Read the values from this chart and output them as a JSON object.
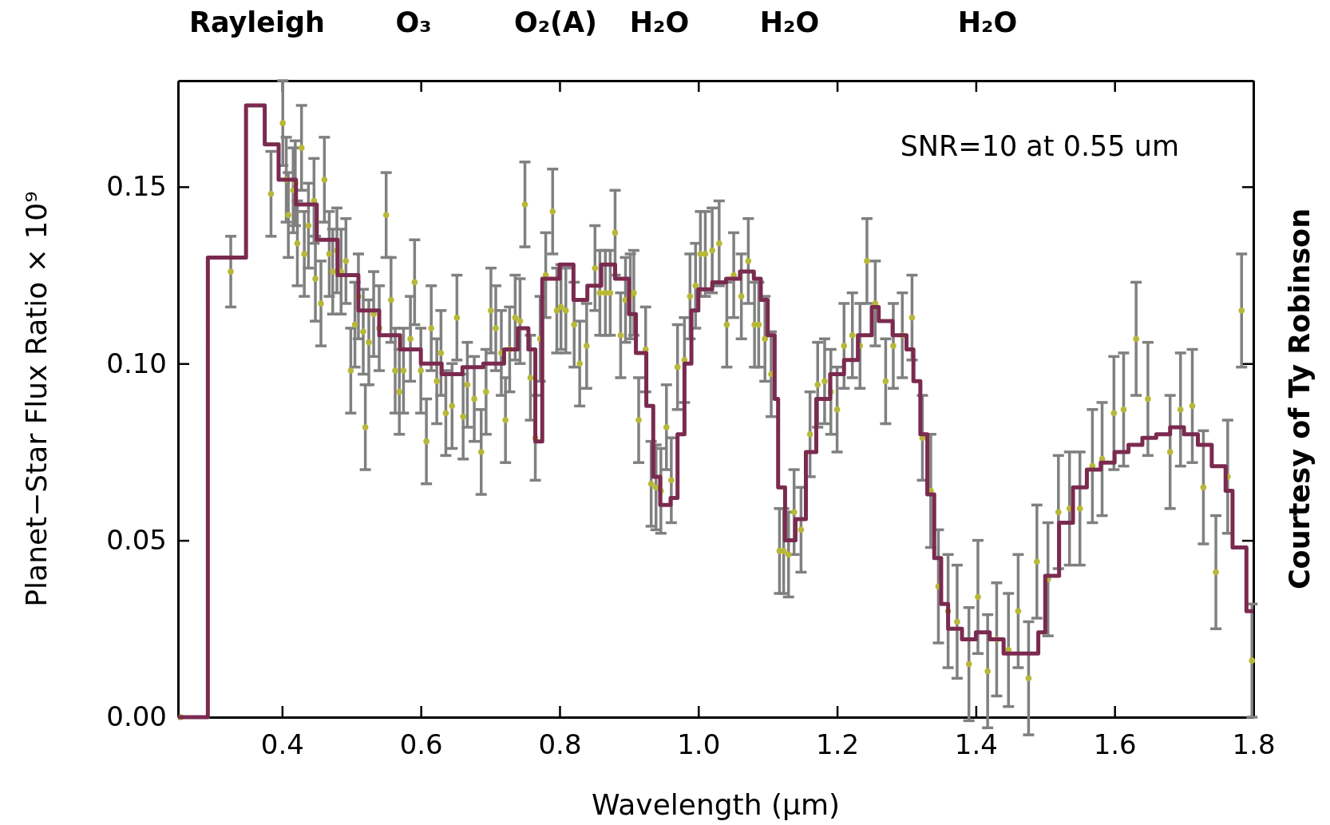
{
  "chart_data": {
    "type": "scatter",
    "xlabel": "Wavelength (μm)",
    "ylabel": "Planet−Star Flux Ratio × 10⁹",
    "xlim": [
      0.25,
      1.8
    ],
    "ylim": [
      0,
      0.18
    ],
    "xticks": [
      {
        "value": 0.4,
        "label": "0.4"
      },
      {
        "value": 0.6,
        "label": "0.6"
      },
      {
        "value": 0.8,
        "label": "0.8"
      },
      {
        "value": 1.0,
        "label": "1.0"
      },
      {
        "value": 1.2,
        "label": "1.2"
      },
      {
        "value": 1.4,
        "label": "1.4"
      },
      {
        "value": 1.6,
        "label": "1.6"
      },
      {
        "value": 1.8,
        "label": "1.8"
      }
    ],
    "yticks": [
      {
        "value": 0,
        "label": "0.00"
      },
      {
        "value": 0.05,
        "label": "0.05"
      },
      {
        "value": 0.1,
        "label": "0.10"
      },
      {
        "value": 0.15,
        "label": "0.15"
      }
    ],
    "grid": false,
    "annotations": [
      "Rayleigh",
      "O₃",
      "O₂(A)",
      "H₂O",
      "H₂O",
      "H₂O",
      "SNR=10 at 0.55 um",
      "Courtesy of Ty Robinson"
    ],
    "series": [
      {
        "type": "step",
        "color": "#7b2a4f",
        "x": [
          0.25,
          0.293,
          0.348,
          0.375,
          0.395,
          0.42,
          0.45,
          0.48,
          0.51,
          0.54,
          0.57,
          0.6,
          0.63,
          0.66,
          0.69,
          0.72,
          0.74,
          0.755,
          0.765,
          0.775,
          0.8,
          0.82,
          0.84,
          0.86,
          0.88,
          0.9,
          0.91,
          0.925,
          0.935,
          0.945,
          0.96,
          0.97,
          0.98,
          0.99,
          1.0,
          1.02,
          1.04,
          1.06,
          1.08,
          1.09,
          1.1,
          1.11,
          1.115,
          1.125,
          1.14,
          1.155,
          1.17,
          1.19,
          1.21,
          1.23,
          1.25,
          1.26,
          1.28,
          1.3,
          1.31,
          1.32,
          1.33,
          1.34,
          1.35,
          1.36,
          1.38,
          1.4,
          1.42,
          1.44,
          1.47,
          1.49,
          1.5,
          1.52,
          1.54,
          1.56,
          1.58,
          1.6,
          1.62,
          1.64,
          1.66,
          1.68,
          1.7,
          1.72,
          1.74,
          1.76,
          1.77,
          1.79,
          1.8
        ],
        "values": [
          0,
          0.13,
          0.173,
          0.162,
          0.152,
          0.145,
          0.135,
          0.125,
          0.115,
          0.108,
          0.104,
          0.1,
          0.097,
          0.099,
          0.1,
          0.104,
          0.11,
          0.104,
          0.078,
          0.124,
          0.128,
          0.118,
          0.122,
          0.128,
          0.124,
          0.114,
          0.103,
          0.088,
          0.068,
          0.06,
          0.062,
          0.08,
          0.1,
          0.115,
          0.121,
          0.123,
          0.124,
          0.126,
          0.124,
          0.118,
          0.108,
          0.09,
          0.065,
          0.05,
          0.056,
          0.075,
          0.09,
          0.097,
          0.101,
          0.108,
          0.116,
          0.112,
          0.108,
          0.104,
          0.095,
          0.08,
          0.063,
          0.045,
          0.032,
          0.025,
          0.022,
          0.024,
          0.022,
          0.018,
          0.018,
          0.024,
          0.04,
          0.055,
          0.065,
          0.07,
          0.072,
          0.075,
          0.077,
          0.079,
          0.08,
          0.082,
          0.08,
          0.077,
          0.071,
          0.064,
          0.048,
          0.03,
          0.03
        ]
      },
      {
        "color": "#b8b838",
        "marker": "circle",
        "x": [
          0.254,
          0.326,
          0.384,
          0.401,
          0.406,
          0.409,
          0.416,
          0.419,
          0.422,
          0.428,
          0.432,
          0.438,
          0.446,
          0.448,
          0.456,
          0.461,
          0.468,
          0.473,
          0.479,
          0.485,
          0.492,
          0.499,
          0.505,
          0.51,
          0.517,
          0.52,
          0.525,
          0.532,
          0.54,
          0.55,
          0.557,
          0.563,
          0.569,
          0.575,
          0.585,
          0.591,
          0.6,
          0.608,
          0.615,
          0.623,
          0.629,
          0.636,
          0.645,
          0.652,
          0.661,
          0.667,
          0.677,
          0.687,
          0.694,
          0.701,
          0.708,
          0.716,
          0.722,
          0.728,
          0.736,
          0.743,
          0.75,
          0.758,
          0.765,
          0.772,
          0.78,
          0.79,
          0.796,
          0.802,
          0.809,
          0.821,
          0.829,
          0.839,
          0.851,
          0.858,
          0.866,
          0.873,
          0.88,
          0.888,
          0.895,
          0.902,
          0.907,
          0.914,
          0.924,
          0.932,
          0.939,
          0.946,
          0.954,
          0.961,
          0.97,
          0.98,
          0.988,
          0.996,
          1.003,
          1.01,
          1.02,
          1.03,
          1.041,
          1.051,
          1.062,
          1.072,
          1.081,
          1.087,
          1.096,
          1.105,
          1.117,
          1.123,
          1.13,
          1.138,
          1.148,
          1.161,
          1.172,
          1.182,
          1.191,
          1.2,
          1.21,
          1.222,
          1.233,
          1.243,
          1.255,
          1.27,
          1.281,
          1.294,
          1.308,
          1.323,
          1.335,
          1.346,
          1.36,
          1.373,
          1.39,
          1.403,
          1.417,
          1.43,
          1.447,
          1.461,
          1.476,
          1.488,
          1.504,
          1.519,
          1.535,
          1.55,
          1.568,
          1.582,
          1.599,
          1.613,
          1.631,
          1.648,
          1.68,
          1.695,
          1.712,
          1.728,
          1.746,
          1.763,
          1.783,
          1.798
        ],
        "values": [
          0,
          0.126,
          0.148,
          0.168,
          0.152,
          0.142,
          0.149,
          0.151,
          0.134,
          0.161,
          0.131,
          0.139,
          0.146,
          0.124,
          0.117,
          0.152,
          0.131,
          0.126,
          0.132,
          0.126,
          0.129,
          0.098,
          0.111,
          0.119,
          0.109,
          0.082,
          0.106,
          0.114,
          0.11,
          0.142,
          0.118,
          0.098,
          0.092,
          0.098,
          0.107,
          0.123,
          0.098,
          0.078,
          0.11,
          0.095,
          0.103,
          0.086,
          0.088,
          0.113,
          0.085,
          0.094,
          0.09,
          0.075,
          0.092,
          0.115,
          0.11,
          0.103,
          0.084,
          0.104,
          0.113,
          0.112,
          0.145,
          0.096,
          0.079,
          0.107,
          0.125,
          0.143,
          0.115,
          0.116,
          0.115,
          0.111,
          0.1,
          0.105,
          0.127,
          0.12,
          0.12,
          0.12,
          0.137,
          0.108,
          0.118,
          0.119,
          0.12,
          0.084,
          0.104,
          0.066,
          0.065,
          0.064,
          0.082,
          0.067,
          0.099,
          0.101,
          0.119,
          0.122,
          0.131,
          0.131,
          0.132,
          0.134,
          0.111,
          0.125,
          0.119,
          0.129,
          0.111,
          0.111,
          0.107,
          0.097,
          0.047,
          0.047,
          0.046,
          0.058,
          0.053,
          0.08,
          0.094,
          0.095,
          0.092,
          0.087,
          0.105,
          0.108,
          0.105,
          0.129,
          0.117,
          0.095,
          0.105,
          0.108,
          0.113,
          0.079,
          0.064,
          0.037,
          0.03,
          0.027,
          0.015,
          0.034,
          0.013,
          0.022,
          0.019,
          0.03,
          0.011,
          0.044,
          0.039,
          0.058,
          0.059,
          0.059,
          0.071,
          0.073,
          0.086,
          0.087,
          0.107,
          0.09,
          0.075,
          0.087,
          0.088,
          0.065,
          0.041,
          0.068,
          0.115,
          0.016
        ],
        "errors": [
          null,
          0.01,
          0.012,
          0.012,
          0.012,
          0.012,
          0.012,
          0.012,
          0.012,
          0.012,
          0.012,
          0.012,
          0.012,
          0.012,
          0.012,
          0.012,
          0.012,
          0.012,
          0.012,
          0.012,
          0.012,
          0.012,
          0.012,
          0.012,
          0.012,
          0.012,
          0.012,
          0.012,
          0.012,
          0.012,
          0.012,
          0.012,
          0.012,
          0.012,
          0.012,
          0.012,
          0.012,
          0.012,
          0.012,
          0.012,
          0.012,
          0.012,
          0.012,
          0.012,
          0.012,
          0.012,
          0.012,
          0.012,
          0.012,
          0.012,
          0.012,
          0.012,
          0.012,
          0.012,
          0.012,
          0.012,
          0.012,
          0.012,
          0.012,
          0.012,
          0.012,
          0.012,
          0.012,
          0.012,
          0.012,
          0.012,
          0.012,
          0.012,
          0.012,
          0.012,
          0.012,
          0.012,
          0.012,
          0.012,
          0.012,
          0.012,
          0.012,
          0.012,
          0.012,
          0.012,
          0.012,
          0.012,
          0.012,
          0.012,
          0.012,
          0.012,
          0.012,
          0.012,
          0.012,
          0.012,
          0.012,
          0.012,
          0.012,
          0.012,
          0.012,
          0.012,
          0.012,
          0.012,
          0.012,
          0.012,
          0.012,
          0.012,
          0.012,
          0.012,
          0.012,
          0.012,
          0.012,
          0.012,
          0.012,
          0.012,
          0.012,
          0.012,
          0.012,
          0.012,
          0.012,
          0.012,
          0.012,
          0.012,
          0.012,
          0.012,
          0.016,
          0.016,
          0.016,
          0.016,
          0.016,
          0.016,
          0.016,
          0.016,
          0.016,
          0.016,
          0.016,
          0.016,
          0.016,
          0.016,
          0.016,
          0.016,
          0.016,
          0.016,
          0.016,
          0.016,
          0.016,
          0.016,
          0.016,
          0.016,
          0.016,
          0.016,
          0.016,
          0.016,
          0.016,
          0.016
        ]
      }
    ]
  }
}
